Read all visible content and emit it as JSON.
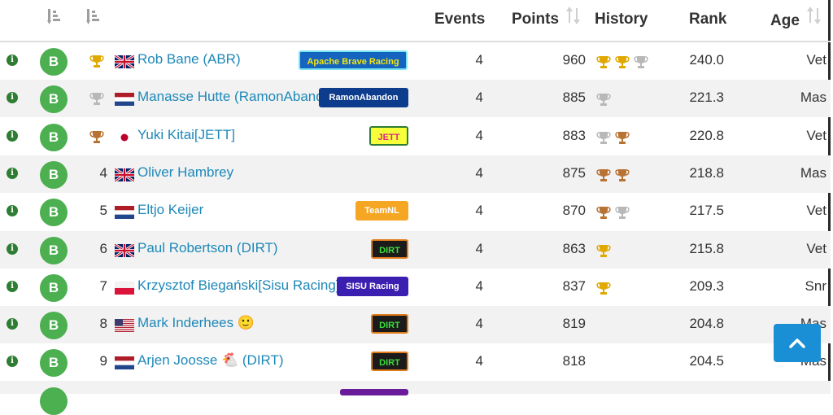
{
  "header": {
    "events": "Events",
    "points": "Points",
    "history": "History",
    "rank": "Rank",
    "age": "Age"
  },
  "colors": {
    "gold": "#e0a800",
    "silver": "#b8b8b8",
    "bronze": "#b87333",
    "link": "#1e88b8",
    "b_badge": "#4caf50",
    "scroll_button": "#1a8fd6"
  },
  "badge_letter": "B",
  "rows": [
    {
      "pos": "",
      "pos_trophy": "gold",
      "flag": "uk",
      "name": "Rob Bane (ABR)",
      "team": "Apache Brave Racing",
      "team_style": "apache",
      "events": "4",
      "points": "960",
      "history": [
        "gold",
        "gold",
        "silver"
      ],
      "rank": "240.0",
      "age": "Vet"
    },
    {
      "pos": "",
      "pos_trophy": "silver",
      "flag": "nl",
      "name": "Manasse Hutte (RamonAbandon)",
      "team": "RamonAbandon",
      "team_style": "ramon",
      "events": "4",
      "points": "885",
      "history": [
        "silver"
      ],
      "rank": "221.3",
      "age": "Mas"
    },
    {
      "pos": "",
      "pos_trophy": "bronze",
      "flag": "jp",
      "name": "Yuki Kitai[JETT]",
      "team": "JETT",
      "team_style": "jett",
      "events": "4",
      "points": "883",
      "history": [
        "silver",
        "bronze"
      ],
      "rank": "220.8",
      "age": "Vet"
    },
    {
      "pos": "4",
      "pos_trophy": "",
      "flag": "uk",
      "name": "Oliver Hambrey",
      "team": "",
      "team_style": "",
      "events": "4",
      "points": "875",
      "history": [
        "bronze",
        "bronze"
      ],
      "rank": "218.8",
      "age": "Mas"
    },
    {
      "pos": "5",
      "pos_trophy": "",
      "flag": "nl",
      "name": "Eltjo Keijer",
      "team": "TeamNL",
      "team_style": "teamnl",
      "events": "4",
      "points": "870",
      "history": [
        "bronze",
        "silver"
      ],
      "rank": "217.5",
      "age": "Vet"
    },
    {
      "pos": "6",
      "pos_trophy": "",
      "flag": "uk",
      "name": "Paul Robertson (DIRT)",
      "team": "DIRT",
      "team_style": "dirt",
      "events": "4",
      "points": "863",
      "history": [
        "gold"
      ],
      "rank": "215.8",
      "age": "Vet"
    },
    {
      "pos": "7",
      "pos_trophy": "",
      "flag": "pl",
      "name": "Krzysztof Biegański[Sisu Racing]",
      "team": "SISU Racing",
      "team_style": "sisu",
      "events": "4",
      "points": "837",
      "history": [
        "gold"
      ],
      "rank": "209.3",
      "age": "Snr"
    },
    {
      "pos": "8",
      "pos_trophy": "",
      "flag": "us",
      "name": "Mark Inderhees 🙂",
      "team": "DIRT",
      "team_style": "dirt",
      "events": "4",
      "points": "819",
      "history": [],
      "rank": "204.8",
      "age": "Mas"
    },
    {
      "pos": "9",
      "pos_trophy": "",
      "flag": "nl",
      "name": "Arjen Joosse 🐔 (DIRT)",
      "team": "DIRT",
      "team_style": "dirt",
      "events": "4",
      "points": "818",
      "history": [],
      "rank": "204.5",
      "age": "Mas"
    }
  ]
}
